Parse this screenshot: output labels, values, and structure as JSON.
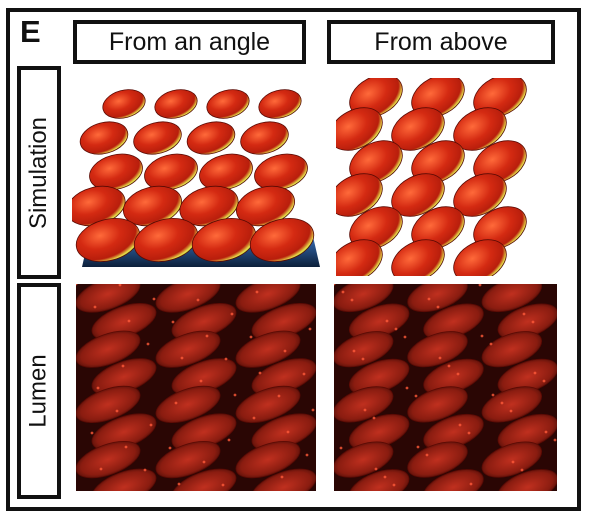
{
  "panel": {
    "letter": "E",
    "columns": [
      {
        "label": "From an angle"
      },
      {
        "label": "From above"
      }
    ],
    "rows": [
      {
        "label": "Simulation"
      },
      {
        "label": "Lumen"
      }
    ]
  },
  "colors": {
    "border": "#111111",
    "sim_red": "#d42a12",
    "sim_highlight": "#ff5a2a",
    "sim_yellow": "#e8e04a",
    "sim_green": "#6ec43a",
    "sim_blue": "#2b5fa8",
    "lumen_dark": "#2a0604",
    "lumen_red": "#b5291b"
  }
}
